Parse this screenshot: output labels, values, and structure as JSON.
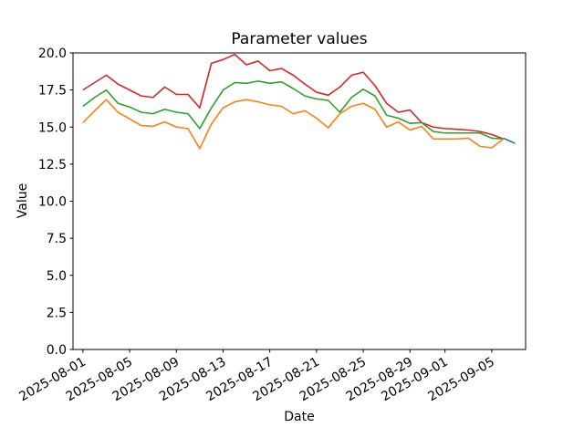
{
  "figure": {
    "kind": "matplotlib-line-figure",
    "background": "#ffffff"
  },
  "chart_data": {
    "type": "line",
    "title": "Parameter values",
    "xlabel": "Date",
    "ylabel": "Value",
    "grid": false,
    "legend": "none",
    "ylim": [
      0,
      20
    ],
    "xlim_days": [
      -0.85,
      37.9
    ],
    "x_start_date": "2025-08-01",
    "yticks": [
      "0.0",
      "2.5",
      "5.0",
      "7.5",
      "10.0",
      "12.5",
      "15.0",
      "17.5",
      "20.0"
    ],
    "xticks": [
      {
        "label": "2025-08-01",
        "date": "2025-08-01"
      },
      {
        "label": "2025-08-05",
        "date": "2025-08-05"
      },
      {
        "label": "2025-08-09",
        "date": "2025-08-09"
      },
      {
        "label": "2025-08-13",
        "date": "2025-08-13"
      },
      {
        "label": "2025-08-17",
        "date": "2025-08-17"
      },
      {
        "label": "2025-08-21",
        "date": "2025-08-21"
      },
      {
        "label": "2025-08-25",
        "date": "2025-08-25"
      },
      {
        "label": "2025-08-29",
        "date": "2025-08-29"
      },
      {
        "label": "2025-09-01",
        "date": "2025-09-01"
      },
      {
        "label": "2025-09-05",
        "date": "2025-09-05"
      }
    ],
    "dates": [
      "2025-08-01",
      "2025-08-02",
      "2025-08-03",
      "2025-08-04",
      "2025-08-05",
      "2025-08-06",
      "2025-08-07",
      "2025-08-08",
      "2025-08-09",
      "2025-08-10",
      "2025-08-11",
      "2025-08-12",
      "2025-08-13",
      "2025-08-14",
      "2025-08-15",
      "2025-08-16",
      "2025-08-17",
      "2025-08-18",
      "2025-08-19",
      "2025-08-20",
      "2025-08-21",
      "2025-08-22",
      "2025-08-23",
      "2025-08-24",
      "2025-08-25",
      "2025-08-26",
      "2025-08-27",
      "2025-08-28",
      "2025-08-29",
      "2025-08-30",
      "2025-08-31",
      "2025-09-01",
      "2025-09-02",
      "2025-09-03",
      "2025-09-04",
      "2025-09-05",
      "2025-09-06"
    ],
    "series": [
      {
        "name": "red-line",
        "color": "#d62728",
        "values": [
          17.5,
          18.0,
          18.5,
          17.9,
          17.5,
          17.1,
          17.0,
          17.7,
          17.2,
          17.2,
          16.3,
          19.3,
          19.55,
          19.9,
          19.2,
          19.45,
          18.8,
          18.95,
          18.5,
          17.9,
          17.35,
          17.15,
          17.7,
          18.5,
          18.7,
          17.8,
          16.6,
          16.0,
          16.15,
          15.3,
          15.0,
          14.9,
          14.85,
          14.8,
          14.7,
          14.5,
          14.2
        ]
      },
      {
        "name": "green-line",
        "color": "#2ca02c",
        "values": [
          16.4,
          17.0,
          17.5,
          16.6,
          16.35,
          16.0,
          15.9,
          16.2,
          16.0,
          15.9,
          14.9,
          16.3,
          17.5,
          18.0,
          17.95,
          18.1,
          17.95,
          18.05,
          17.6,
          17.1,
          16.9,
          16.8,
          16.0,
          17.0,
          17.55,
          17.1,
          15.8,
          15.6,
          15.25,
          15.3,
          14.7,
          14.6,
          14.6,
          14.6,
          14.6,
          14.25,
          14.2
        ]
      },
      {
        "name": "orange-line",
        "color": "#ff7f0e",
        "values": [
          15.3,
          16.1,
          16.85,
          16.0,
          15.55,
          15.1,
          15.05,
          15.35,
          15.0,
          14.9,
          13.55,
          15.2,
          16.3,
          16.7,
          16.85,
          16.7,
          16.5,
          16.4,
          15.9,
          16.1,
          15.6,
          14.95,
          15.9,
          16.4,
          16.6,
          16.2,
          15.0,
          15.35,
          14.8,
          15.05,
          14.2,
          14.2,
          14.2,
          14.25,
          13.7,
          13.6,
          14.2
        ]
      },
      {
        "name": "blue-line",
        "color": "#1f77b4",
        "dates": [
          "2025-09-06",
          "2025-09-07"
        ],
        "values": [
          14.25,
          13.9
        ]
      }
    ]
  }
}
